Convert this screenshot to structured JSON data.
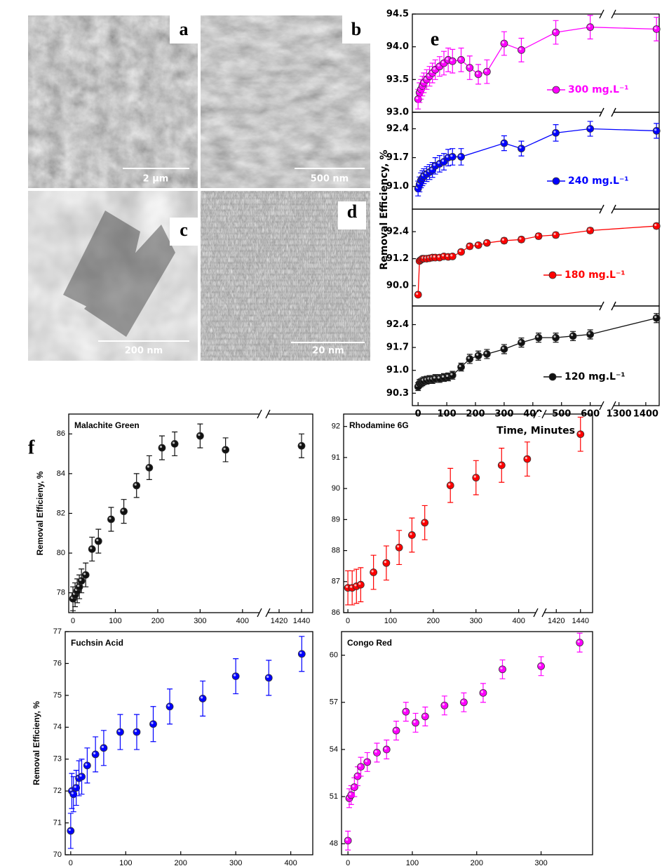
{
  "micrographs": [
    {
      "label": "a",
      "scale_bar": "2 µm"
    },
    {
      "label": "b",
      "scale_bar": "500 nm"
    },
    {
      "label": "c",
      "scale_bar": "200 nm"
    },
    {
      "label": "d",
      "scale_bar": "20 nm"
    }
  ],
  "panel_labels": [
    "e",
    "f"
  ],
  "chart_data": [
    {
      "type": "line",
      "ylabel": "Removal Efficiency, %",
      "xlim": [
        -20,
        1450
      ],
      "x_break": [
        640,
        1280
      ],
      "ylim": [
        93.0,
        94.5
      ],
      "yticks": [
        {
          "value": 93.0,
          "label": "93.0"
        },
        93.5,
        {
          "value": 94.0,
          "label": "94.0"
        },
        94.5
      ],
      "x": [
        0,
        5,
        10,
        15,
        20,
        30,
        40,
        50,
        60,
        75,
        90,
        105,
        120,
        150,
        180,
        210,
        240,
        300,
        360,
        480,
        600,
        1440
      ],
      "series": [
        {
          "name": "300 mg.L⁻¹",
          "color": "#ff00ff",
          "values": [
            93.2,
            93.3,
            93.35,
            93.4,
            93.45,
            93.5,
            93.55,
            93.6,
            93.65,
            93.7,
            93.75,
            93.8,
            93.78,
            93.8,
            93.68,
            93.58,
            93.62,
            94.05,
            93.95,
            94.22,
            94.3,
            94.27
          ],
          "errors": [
            0.15,
            0.15,
            0.15,
            0.15,
            0.15,
            0.15,
            0.15,
            0.15,
            0.15,
            0.15,
            0.18,
            0.18,
            0.18,
            0.18,
            0.18,
            0.15,
            0.18,
            0.18,
            0.18,
            0.18,
            0.18,
            0.18
          ]
        }
      ]
    },
    {
      "type": "line",
      "xlim": [
        -20,
        1450
      ],
      "x_break": [
        640,
        1280
      ],
      "ylim": [
        90.45,
        92.8
      ],
      "yticks": [
        {
          "value": 91.0,
          "label": "91.0"
        },
        91.7,
        92.4
      ],
      "x": [
        0,
        5,
        10,
        15,
        20,
        30,
        40,
        50,
        60,
        75,
        90,
        105,
        120,
        150,
        300,
        360,
        480,
        600,
        1440
      ],
      "series": [
        {
          "name": "240 mg.L⁻¹",
          "color": "#0000ff",
          "values": [
            90.95,
            91.05,
            91.15,
            91.2,
            91.25,
            91.3,
            91.35,
            91.4,
            91.5,
            91.55,
            91.6,
            91.7,
            91.72,
            91.72,
            92.05,
            91.92,
            92.3,
            92.4,
            92.35
          ],
          "errors": [
            0.18,
            0.18,
            0.18,
            0.18,
            0.18,
            0.18,
            0.18,
            0.18,
            0.2,
            0.2,
            0.2,
            0.2,
            0.2,
            0.2,
            0.18,
            0.18,
            0.2,
            0.18,
            0.18
          ]
        }
      ]
    },
    {
      "type": "line",
      "xlim": [
        -20,
        1450
      ],
      "x_break": [
        640,
        1280
      ],
      "ylim": [
        89.1,
        93.4
      ],
      "yticks": [
        {
          "value": 90.0,
          "label": "90.0"
        },
        91.2,
        92.4
      ],
      "x": [
        0,
        5,
        10,
        15,
        20,
        30,
        40,
        50,
        60,
        75,
        90,
        105,
        120,
        150,
        180,
        210,
        240,
        300,
        360,
        420,
        480,
        600,
        1440
      ],
      "series": [
        {
          "name": "180 mg.L⁻¹",
          "color": "#ff0000",
          "values": [
            89.6,
            91.1,
            91.15,
            91.2,
            91.2,
            91.2,
            91.22,
            91.25,
            91.25,
            91.25,
            91.3,
            91.28,
            91.3,
            91.5,
            91.75,
            91.8,
            91.9,
            92.0,
            92.05,
            92.2,
            92.25,
            92.45,
            92.65
          ],
          "errors": [
            0.1,
            0.1,
            0.1,
            0.1,
            0.1,
            0.1,
            0.1,
            0.1,
            0.1,
            0.1,
            0.1,
            0.1,
            0.1,
            0.1,
            0.12,
            0.1,
            0.1,
            0.12,
            0.12,
            0.12,
            0.12,
            0.12,
            0.12
          ]
        }
      ]
    },
    {
      "type": "line",
      "xlabel": "Time, Minutes",
      "xlim": [
        -20,
        1450
      ],
      "x_break": [
        640,
        1280
      ],
      "xticks": [
        0,
        100,
        200,
        300,
        400,
        500,
        600,
        1300,
        1400
      ],
      "ylim": [
        89.92,
        92.97
      ],
      "yticks": [
        90.3,
        {
          "value": 91.0,
          "label": "91.0"
        },
        91.7,
        92.4
      ],
      "x": [
        0,
        5,
        10,
        15,
        20,
        30,
        40,
        50,
        60,
        75,
        90,
        105,
        120,
        150,
        180,
        210,
        240,
        300,
        360,
        420,
        480,
        540,
        600,
        1440
      ],
      "series": [
        {
          "name": "120 mg.L⁻¹",
          "color": "#111111",
          "values": [
            90.5,
            90.6,
            90.62,
            90.65,
            90.68,
            90.7,
            90.72,
            90.72,
            90.75,
            90.75,
            90.78,
            90.8,
            90.85,
            91.1,
            91.35,
            91.45,
            91.5,
            91.65,
            91.85,
            92.0,
            92.0,
            92.05,
            92.1,
            92.6
          ],
          "errors": [
            0.12,
            0.12,
            0.12,
            0.12,
            0.12,
            0.12,
            0.12,
            0.12,
            0.12,
            0.12,
            0.12,
            0.12,
            0.12,
            0.12,
            0.14,
            0.14,
            0.14,
            0.14,
            0.14,
            0.14,
            0.14,
            0.14,
            0.14,
            0.14
          ]
        }
      ]
    },
    {
      "type": "scatter",
      "title": "Malachite Green",
      "ylabel": "Removal Efficieny, %",
      "xlim": [
        -10,
        1450
      ],
      "x_break": [
        440,
        1410
      ],
      "xticks": [
        0,
        100,
        200,
        300,
        400,
        1420,
        1440
      ],
      "ylim": [
        77,
        87
      ],
      "yticks": [
        78,
        80,
        82,
        84,
        86
      ],
      "x": [
        0,
        5,
        10,
        15,
        20,
        30,
        45,
        60,
        90,
        120,
        150,
        180,
        210,
        240,
        300,
        360,
        1440
      ],
      "series": [
        {
          "name": "Malachite Green",
          "color": "#111111",
          "values": [
            77.7,
            77.9,
            78.1,
            78.3,
            78.6,
            78.9,
            80.2,
            80.6,
            81.7,
            82.1,
            83.4,
            84.3,
            85.3,
            85.5,
            85.9,
            85.2,
            85.4
          ],
          "errors": [
            0.6,
            0.6,
            0.6,
            0.6,
            0.6,
            0.6,
            0.6,
            0.6,
            0.6,
            0.6,
            0.6,
            0.6,
            0.6,
            0.6,
            0.6,
            0.6,
            0.6
          ]
        }
      ]
    },
    {
      "type": "scatter",
      "title": "Rhodamine 6G",
      "xlim": [
        -10,
        1450
      ],
      "x_break": [
        440,
        1410
      ],
      "xticks": [
        0,
        100,
        200,
        300,
        400,
        1420,
        1440
      ],
      "ylim": [
        86,
        92.4
      ],
      "yticks": [
        86,
        87,
        88,
        89,
        90,
        91,
        92
      ],
      "x": [
        0,
        10,
        20,
        30,
        60,
        90,
        120,
        150,
        180,
        240,
        300,
        360,
        420,
        1440
      ],
      "series": [
        {
          "name": "Rhodamine 6G",
          "color": "#ff0000",
          "values": [
            86.8,
            86.8,
            86.85,
            86.9,
            87.3,
            87.6,
            88.1,
            88.5,
            88.9,
            90.1,
            90.35,
            90.75,
            90.95,
            91.75
          ],
          "errors": [
            0.55,
            0.55,
            0.55,
            0.55,
            0.55,
            0.55,
            0.55,
            0.55,
            0.55,
            0.55,
            0.55,
            0.55,
            0.55,
            0.55
          ]
        }
      ]
    },
    {
      "type": "scatter",
      "title": "Fuchsin Acid",
      "ylabel": "Removal Efficieny, %",
      "xlabel": "Time, Minutes",
      "xlim": [
        -10,
        440
      ],
      "xticks": [
        0,
        100,
        200,
        300,
        400
      ],
      "ylim": [
        70,
        77
      ],
      "yticks": [
        70,
        71,
        72,
        73,
        74,
        75,
        76,
        77
      ],
      "x": [
        0,
        2,
        5,
        10,
        15,
        20,
        30,
        45,
        60,
        90,
        120,
        150,
        180,
        240,
        300,
        360,
        420
      ],
      "series": [
        {
          "name": "Fuchsin Acid",
          "color": "#0000ff",
          "values": [
            70.75,
            72.0,
            71.9,
            72.1,
            72.4,
            72.45,
            72.8,
            73.15,
            73.35,
            73.85,
            73.85,
            74.1,
            74.65,
            74.9,
            75.6,
            75.55,
            76.3
          ],
          "errors": [
            0.55,
            0.55,
            0.55,
            0.55,
            0.55,
            0.55,
            0.55,
            0.55,
            0.55,
            0.55,
            0.55,
            0.55,
            0.55,
            0.55,
            0.55,
            0.55,
            0.55
          ]
        }
      ]
    },
    {
      "type": "scatter",
      "title": "Congo Red",
      "xlabel": "Time, Minutes",
      "xlim": [
        -10,
        380
      ],
      "xticks": [
        0,
        100,
        200,
        300
      ],
      "ylim": [
        47.3,
        61.5
      ],
      "yticks": [
        48,
        51,
        54,
        57,
        60
      ],
      "x": [
        0,
        2,
        5,
        10,
        15,
        20,
        30,
        45,
        60,
        75,
        90,
        105,
        120,
        150,
        180,
        210,
        240,
        300,
        360
      ],
      "series": [
        {
          "name": "Congo Red",
          "color": "#ff00ff",
          "values": [
            48.2,
            50.9,
            51.1,
            51.6,
            52.3,
            52.9,
            53.2,
            53.8,
            54.0,
            55.2,
            56.4,
            55.7,
            56.1,
            56.8,
            57.0,
            57.6,
            59.1,
            59.3,
            60.8
          ],
          "errors": [
            0.6,
            0.6,
            0.6,
            0.6,
            0.6,
            0.6,
            0.6,
            0.6,
            0.6,
            0.6,
            0.6,
            0.6,
            0.6,
            0.6,
            0.6,
            0.6,
            0.6,
            0.6,
            0.6
          ]
        }
      ]
    }
  ]
}
